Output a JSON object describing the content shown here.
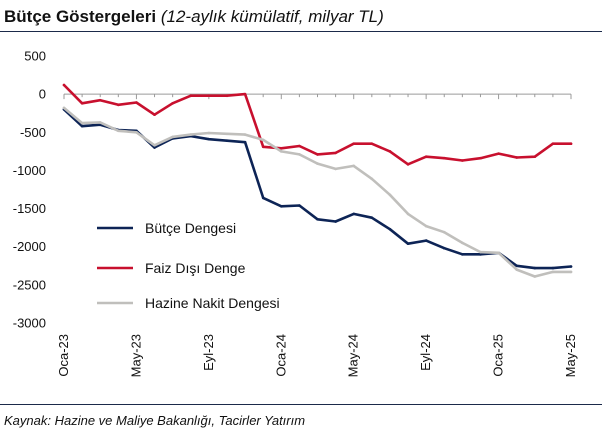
{
  "header": {
    "title": "Bütçe Göstergeleri",
    "subtitle": "(12-aylık kümülatif, milyar TL)"
  },
  "chart_data": {
    "type": "line",
    "title": "Bütçe Göstergeleri",
    "subtitle": "(12-aylık kümülatif, milyar TL)",
    "xlabel": "",
    "ylabel": "",
    "ylim": [
      -3000,
      500
    ],
    "yticks": [
      500,
      0,
      -500,
      -1000,
      -1500,
      -2000,
      -2500,
      -3000
    ],
    "x": [
      "Oca-23",
      "Şub-23",
      "Mar-23",
      "Nis-23",
      "May-23",
      "Haz-23",
      "Tem-23",
      "Ağu-23",
      "Eyl-23",
      "Eki-23",
      "Kas-23",
      "Ara-23",
      "Oca-24",
      "Şub-24",
      "Mar-24",
      "Nis-24",
      "May-24",
      "Haz-24",
      "Tem-24",
      "Ağu-24",
      "Eyl-24",
      "Eki-24",
      "Kas-24",
      "Ara-24",
      "Oca-25",
      "Şub-25",
      "Mar-25",
      "Nis-25",
      "May-25"
    ],
    "x_tick_labels": [
      "Oca-23",
      "May-23",
      "Eyl-23",
      "Oca-24",
      "May-24",
      "Eyl-24",
      "Oca-25",
      "May-25"
    ],
    "x_tick_index": [
      0,
      4,
      8,
      12,
      16,
      20,
      24,
      28
    ],
    "grid": false,
    "legend_position": "lower-left",
    "series": [
      {
        "name": "Bütçe Dengesi",
        "color": "#0d2456",
        "values": [
          -200,
          -420,
          -400,
          -470,
          -480,
          -700,
          -580,
          -550,
          -590,
          -610,
          -630,
          -1360,
          -1470,
          -1460,
          -1640,
          -1670,
          -1570,
          -1620,
          -1770,
          -1960,
          -1920,
          -2020,
          -2100,
          -2100,
          -2080,
          -2250,
          -2280,
          -2280,
          -2260
        ]
      },
      {
        "name": "Faiz Dışı Denge",
        "color": "#c8102e",
        "values": [
          120,
          -120,
          -80,
          -140,
          -110,
          -270,
          -120,
          -20,
          -20,
          -20,
          0,
          -690,
          -710,
          -680,
          -790,
          -770,
          -650,
          -650,
          -750,
          -920,
          -820,
          -840,
          -870,
          -840,
          -780,
          -830,
          -820,
          -650,
          -650
        ]
      },
      {
        "name": "Hazine Nakit Dengesi",
        "color": "#c0bfbc",
        "values": [
          -180,
          -380,
          -370,
          -480,
          -500,
          -670,
          -560,
          -530,
          -510,
          -520,
          -530,
          -600,
          -750,
          -790,
          -910,
          -980,
          -940,
          -1110,
          -1320,
          -1570,
          -1730,
          -1810,
          -1950,
          -2070,
          -2080,
          -2300,
          -2390,
          -2330,
          -2330
        ]
      }
    ]
  },
  "source": "Kaynak: Hazine ve Maliye Bakanlığı, Tacirler Yatırım"
}
